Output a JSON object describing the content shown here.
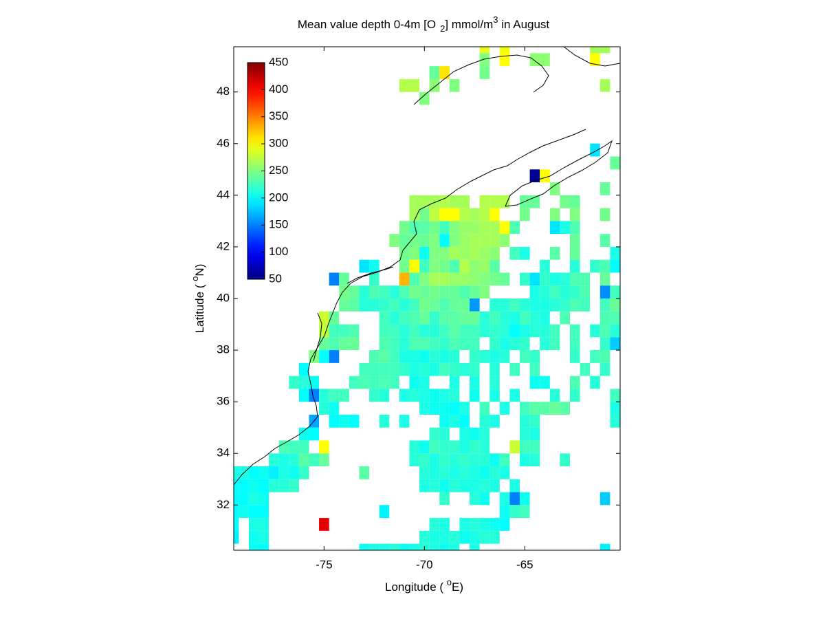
{
  "chart_data": {
    "type": "heatmap",
    "title": [
      "Mean value depth 0-4m [O",
      "2",
      "] mmol/m",
      "3",
      " in August"
    ],
    "xlabel": [
      "Longitude ( ",
      "o",
      "E)"
    ],
    "ylabel": [
      "Latitude ( ",
      "o",
      "N)"
    ],
    "xlim": [
      -79.5,
      -60.25
    ],
    "ylim": [
      30.25,
      49.75
    ],
    "xticks": [
      -75,
      -70,
      -65
    ],
    "yticks": [
      32,
      34,
      36,
      38,
      40,
      42,
      44,
      46,
      48
    ],
    "cell_size": 0.5,
    "colormap": "jet",
    "clim": [
      50,
      450
    ],
    "colorbar_ticks": [
      50,
      100,
      150,
      200,
      250,
      300,
      350,
      400,
      450
    ],
    "rows": [
      {
        "lat": 49.75,
        "lon": [
          -67,
          -66,
          -61.5,
          -61
        ],
        "values": [
          290,
          295,
          265,
          265
        ]
      },
      {
        "lat": 49.25,
        "lon": [
          -67,
          -66,
          -64.5,
          -64,
          -61.5
        ],
        "values": [
          250,
          300,
          255,
          255,
          300
        ]
      },
      {
        "lat": 48.75,
        "lon": [
          -69.5,
          -69,
          -67
        ],
        "values": [
          240,
          310,
          245
        ]
      },
      {
        "lat": 48.25,
        "lon": [
          -71,
          -70.5,
          -69.5,
          -68.5,
          -61
        ],
        "values": [
          270,
          270,
          255,
          250,
          265
        ]
      },
      {
        "lat": 47.75,
        "lon": [
          -70
        ],
        "values": [
          250
        ]
      },
      {
        "lat": 45.75,
        "lon": [
          -61.5
        ],
        "values": [
          190
        ]
      },
      {
        "lat": 45.25,
        "lon": [
          -60.5
        ],
        "values": [
          240
        ]
      },
      {
        "lat": 44.75,
        "lon": [
          -64.5,
          -64
        ],
        "values": [
          60,
          300
        ]
      },
      {
        "lat": 44.25,
        "lon": [
          -63.5,
          -61
        ],
        "values": [
          250,
          240
        ]
      },
      {
        "lat": 43.75,
        "lon": [
          -70.5,
          -70,
          -69.5,
          -69,
          -68.5,
          -68,
          -67,
          -66.5,
          -66,
          -65,
          -64.5,
          -63,
          -62.5
        ],
        "values": [
          265,
          265,
          265,
          270,
          265,
          265,
          270,
          270,
          270,
          240,
          240,
          245,
          240
        ]
      },
      {
        "lat": 43.25,
        "lon": [
          -70.5,
          -70,
          -69.5,
          -69,
          -68.5,
          -68,
          -67.5,
          -67,
          -66.5,
          -65,
          -63.5,
          -62.5,
          -61
        ],
        "values": [
          265,
          245,
          275,
          300,
          300,
          270,
          265,
          270,
          300,
          245,
          250,
          250,
          245
        ]
      },
      {
        "lat": 42.75,
        "lon": [
          -71,
          -70.5,
          -70,
          -69.5,
          -69,
          -68.5,
          -68,
          -67.5,
          -67,
          -66.5,
          -66,
          -65.5,
          -63.5,
          -63,
          -62.5
        ],
        "values": [
          245,
          230,
          235,
          245,
          225,
          250,
          260,
          260,
          265,
          265,
          300,
          230,
          190,
          210,
          230
        ]
      },
      {
        "lat": 42.25,
        "lon": [
          -71.5,
          -71,
          -70.5,
          -70,
          -69.5,
          -69,
          -68.5,
          -68,
          -67.5,
          -67,
          -66.5,
          -66,
          -62.5,
          -61
        ],
        "values": [
          250,
          240,
          245,
          240,
          250,
          200,
          250,
          260,
          265,
          265,
          265,
          255,
          240,
          235
        ]
      },
      {
        "lat": 41.75,
        "lon": [
          -71,
          -70.5,
          -70,
          -69.5,
          -69,
          -68.5,
          -68,
          -67.5,
          -67,
          -66.5,
          -65.5,
          -65,
          -63.5,
          -62.5,
          -60.5
        ],
        "values": [
          245,
          250,
          205,
          250,
          250,
          265,
          260,
          265,
          260,
          255,
          225,
          210,
          235,
          240,
          210
        ]
      },
      {
        "lat": 41.25,
        "lon": [
          -73,
          -72.5,
          -71,
          -70.5,
          -70,
          -69.5,
          -69,
          -68.5,
          -68,
          -67.5,
          -67,
          -66.5,
          -64,
          -62.5,
          -61.5,
          -61,
          -60.5
        ],
        "values": [
          190,
          205,
          245,
          300,
          225,
          250,
          245,
          230,
          270,
          255,
          260,
          235,
          215,
          215,
          220,
          230,
          200
        ]
      },
      {
        "lat": 40.75,
        "lon": [
          -74.5,
          -74,
          -72.5,
          -71,
          -70.5,
          -70,
          -69.5,
          -69,
          -68.5,
          -68,
          -67.5,
          -67,
          -66.5,
          -66,
          -65,
          -64.5,
          -64,
          -63.5,
          -63,
          -62.5,
          -62,
          -61
        ],
        "values": [
          150,
          240,
          220,
          330,
          230,
          250,
          265,
          265,
          260,
          260,
          255,
          250,
          245,
          240,
          220,
          190,
          220,
          210,
          215,
          230,
          230,
          240
        ]
      },
      {
        "lat": 40.25,
        "lon": [
          -74,
          -73.5,
          -73,
          -72.5,
          -72,
          -71.5,
          -71,
          -70.5,
          -70,
          -69.5,
          -69,
          -68.5,
          -68,
          -67.5,
          -67,
          -64.5,
          -64,
          -63.5,
          -63,
          -62.5,
          -62,
          -61,
          -60.5
        ],
        "values": [
          245,
          240,
          215,
          230,
          225,
          215,
          230,
          245,
          240,
          245,
          240,
          240,
          230,
          240,
          250,
          210,
          215,
          225,
          215,
          220,
          230,
          155,
          225
        ]
      },
      {
        "lat": 39.75,
        "lon": [
          -74,
          -73.5,
          -73,
          -72.5,
          -72,
          -71.5,
          -71,
          -70.5,
          -70,
          -69.5,
          -69,
          -68.5,
          -68,
          -67.5,
          -66.5,
          -66,
          -65.5,
          -65,
          -64.5,
          -64,
          -63.5,
          -63,
          -62.5,
          -62,
          -61,
          -60.5
        ],
        "values": [
          240,
          235,
          215,
          215,
          220,
          225,
          215,
          225,
          245,
          240,
          230,
          240,
          240,
          160,
          215,
          215,
          225,
          215,
          210,
          210,
          215,
          220,
          230,
          225,
          225,
          240
        ]
      },
      {
        "lat": 39.25,
        "lon": [
          -75,
          -74.5,
          -72,
          -71.5,
          -71,
          -70.5,
          -70,
          -69.5,
          -69,
          -68.5,
          -68,
          -67.5,
          -67,
          -66.5,
          -66,
          -65.5,
          -65,
          -64.5,
          -64,
          -63,
          -61,
          -60.5
        ],
        "values": [
          280,
          240,
          225,
          215,
          225,
          230,
          240,
          220,
          235,
          235,
          240,
          240,
          215,
          225,
          215,
          210,
          225,
          215,
          210,
          230,
          230,
          230
        ]
      },
      {
        "lat": 38.75,
        "lon": [
          -75,
          -74.5,
          -74,
          -73.5,
          -72,
          -71.5,
          -71,
          -70.5,
          -70,
          -69.5,
          -69,
          -68.5,
          -68,
          -67.5,
          -67,
          -66.5,
          -66,
          -65.5,
          -65,
          -64.5,
          -64,
          -63.5,
          -62.5,
          -61.5,
          -61,
          -60.5
        ],
        "values": [
          275,
          225,
          225,
          230,
          225,
          225,
          215,
          225,
          215,
          215,
          225,
          235,
          225,
          225,
          215,
          220,
          215,
          200,
          210,
          215,
          215,
          225,
          225,
          215,
          230,
          215
        ]
      },
      {
        "lat": 38.25,
        "lon": [
          -75,
          -74.5,
          -74,
          -73.5,
          -72,
          -71.5,
          -71,
          -70.5,
          -70,
          -69.5,
          -69,
          -68.5,
          -68,
          -67.5,
          -66.5,
          -66,
          -65.5,
          -65,
          -64,
          -63.5,
          -62.5,
          -61,
          -60.5
        ],
        "values": [
          240,
          230,
          240,
          240,
          230,
          225,
          215,
          230,
          230,
          225,
          220,
          230,
          225,
          225,
          220,
          210,
          215,
          220,
          215,
          225,
          225,
          220,
          180
        ]
      },
      {
        "lat": 37.75,
        "lon": [
          -75.5,
          -75,
          -74.5,
          -72.5,
          -72,
          -71.5,
          -71,
          -70.5,
          -70,
          -69.5,
          -69,
          -68.5,
          -67.5,
          -67,
          -66.5,
          -66,
          -65,
          -64.5,
          -62.5,
          -61.5,
          -61
        ],
        "values": [
          250,
          200,
          150,
          230,
          235,
          225,
          210,
          210,
          205,
          215,
          210,
          215,
          220,
          215,
          210,
          215,
          225,
          220,
          220,
          225,
          230
        ]
      },
      {
        "lat": 37.25,
        "lon": [
          -76,
          -73,
          -72.5,
          -72,
          -71.5,
          -71,
          -70.5,
          -70,
          -69.5,
          -69,
          -68.5,
          -68,
          -67.5,
          -66.5,
          -65.5,
          -64.5,
          -62,
          -61
        ],
        "values": [
          200,
          225,
          225,
          225,
          225,
          220,
          210,
          215,
          210,
          225,
          220,
          215,
          220,
          215,
          225,
          225,
          225,
          220
        ]
      },
      {
        "lat": 36.75,
        "lon": [
          -76.5,
          -76,
          -75.5,
          -73.5,
          -73,
          -72.5,
          -72,
          -71.5,
          -70.5,
          -70,
          -68.5,
          -67.5,
          -66.5,
          -64.5,
          -64,
          -62.5,
          -61.5
        ],
        "values": [
          220,
          215,
          205,
          225,
          230,
          225,
          230,
          225,
          205,
          210,
          210,
          210,
          215,
          205,
          205,
          230,
          215
        ]
      },
      {
        "lat": 36.25,
        "lon": [
          -76,
          -75.5,
          -75,
          -74.5,
          -74,
          -72.5,
          -72,
          -71,
          -70.5,
          -70,
          -69.5,
          -69,
          -68.5,
          -67.5,
          -66.5,
          -65.5,
          -63.5,
          -62.5,
          -60.5
        ],
        "values": [
          200,
          150,
          215,
          225,
          225,
          220,
          215,
          210,
          215,
          210,
          205,
          210,
          215,
          205,
          210,
          210,
          215,
          220,
          225
        ]
      },
      {
        "lat": 35.75,
        "lon": [
          -75,
          -74.5,
          -70,
          -69.5,
          -69,
          -68.5,
          -68,
          -67,
          -66,
          -65,
          -64.5,
          -64,
          -63.5,
          -63,
          -60.5
        ],
        "values": [
          215,
          205,
          210,
          205,
          205,
          200,
          210,
          225,
          210,
          225,
          235,
          235,
          240,
          235,
          210
        ]
      },
      {
        "lat": 35.25,
        "lon": [
          -75.5,
          -74.5,
          -74,
          -73.5,
          -72,
          -71,
          -69,
          -68.5,
          -68,
          -67,
          -66.5,
          -65,
          -64.5,
          -60.5
        ],
        "values": [
          165,
          200,
          205,
          200,
          215,
          210,
          205,
          210,
          200,
          215,
          210,
          215,
          220,
          215
        ]
      },
      {
        "lat": 34.75,
        "lon": [
          -76,
          -75.5,
          -69.5,
          -69,
          -68,
          -67.5,
          -67,
          -65,
          -64.5
        ],
        "values": [
          205,
          200,
          220,
          215,
          210,
          205,
          215,
          215,
          210
        ]
      },
      {
        "lat": 34.25,
        "lon": [
          -77,
          -76.5,
          -76,
          -75,
          -70.5,
          -70,
          -69.5,
          -69,
          -68.5,
          -68,
          -67.5,
          -67,
          -65.5,
          -65,
          -64.5
        ],
        "values": [
          230,
          225,
          225,
          300,
          215,
          205,
          225,
          220,
          220,
          210,
          220,
          215,
          280,
          225,
          225
        ]
      },
      {
        "lat": 33.75,
        "lon": [
          -77.5,
          -77,
          -76.5,
          -76,
          -75.5,
          -75,
          -70.5,
          -70,
          -69.5,
          -69,
          -68.5,
          -68,
          -67.5,
          -67,
          -66.5,
          -66,
          -65,
          -64.5,
          -63
        ],
        "values": [
          215,
          210,
          215,
          235,
          225,
          240,
          215,
          220,
          210,
          220,
          215,
          220,
          215,
          215,
          205,
          225,
          210,
          215,
          220
        ]
      },
      {
        "lat": 33.25,
        "lon": [
          -79.5,
          -79,
          -78.5,
          -78,
          -77.5,
          -77,
          -76.5,
          -76,
          -73,
          -70,
          -69.5,
          -69,
          -68.5,
          -68,
          -67.5,
          -67,
          -66.5,
          -66
        ],
        "values": [
          210,
          210,
          200,
          205,
          195,
          210,
          205,
          220,
          235,
          215,
          210,
          215,
          210,
          215,
          210,
          205,
          215,
          210
        ]
      },
      {
        "lat": 32.75,
        "lon": [
          -79.5,
          -79,
          -78.5,
          -78,
          -77.5,
          -77,
          -76.5,
          -70,
          -69.5,
          -69,
          -68.5,
          -68,
          -67.5,
          -67,
          -66.5,
          -65.5
        ],
        "values": [
          200,
          200,
          205,
          200,
          215,
          215,
          220,
          210,
          215,
          205,
          215,
          210,
          210,
          215,
          210,
          210
        ]
      },
      {
        "lat": 32.25,
        "lon": [
          -79.5,
          -79,
          -78.5,
          -78,
          -69,
          -67.5,
          -67,
          -66,
          -65.5,
          -65,
          -61
        ],
        "values": [
          200,
          200,
          210,
          205,
          220,
          215,
          205,
          210,
          150,
          205,
          180
        ]
      },
      {
        "lat": 31.75,
        "lon": [
          -79.5,
          -79,
          -78.5,
          -78,
          -72,
          -66,
          -65.5,
          -65
        ],
        "values": [
          200,
          205,
          200,
          200,
          195,
          205,
          220,
          225
        ]
      },
      {
        "lat": 31.25,
        "lon": [
          -79.5,
          -78.5,
          -78,
          -75,
          -69.5,
          -69,
          -68,
          -67.5,
          -67,
          -66.5,
          -66
        ],
        "values": [
          200,
          210,
          210,
          410,
          215,
          210,
          210,
          215,
          210,
          205,
          200
        ]
      },
      {
        "lat": 30.75,
        "lon": [
          -79.5,
          -78.5,
          -78,
          -70,
          -69.5,
          -69,
          -68.5,
          -68,
          -67.5,
          -67,
          -66.5
        ],
        "values": [
          195,
          205,
          210,
          215,
          210,
          210,
          215,
          205,
          210,
          215,
          215
        ]
      },
      {
        "lat": 30.25,
        "lon": [
          -78.5,
          -78,
          -73,
          -72.5,
          -72,
          -71.5,
          -71,
          -70.5,
          -70,
          -69.5,
          -69,
          -68.5,
          -67.5,
          -61
        ],
        "values": [
          205,
          200,
          205,
          210,
          210,
          215,
          205,
          210,
          215,
          210,
          205,
          210,
          210,
          195
        ]
      }
    ]
  }
}
